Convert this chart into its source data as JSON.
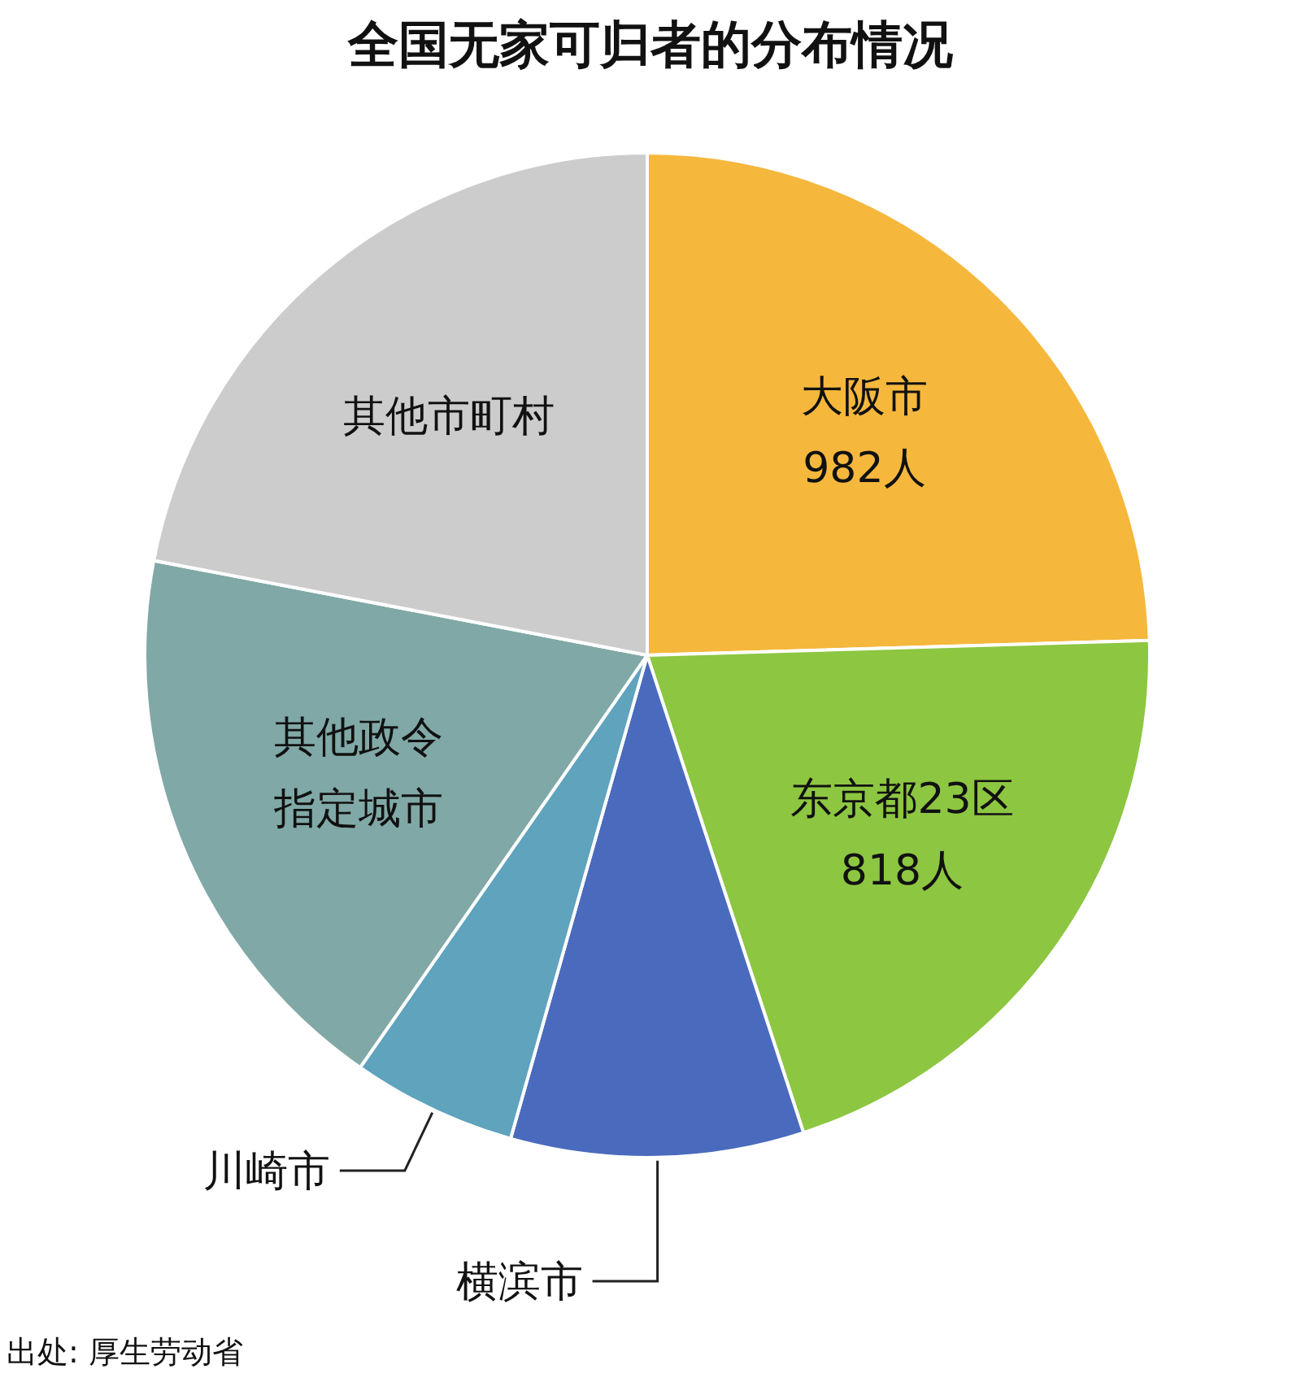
{
  "chart_data": {
    "type": "pie",
    "title": "全国无家可归者的分布情况",
    "categories": [
      "大阪市",
      "东京都23区",
      "横滨市",
      "川崎市",
      "其他政令指定城市",
      "其他市町村"
    ],
    "values": [
      982,
      818,
      377,
      212,
      734,
      880
    ],
    "value_labels": [
      "982人",
      "818人",
      null,
      null,
      null,
      null
    ],
    "colors": [
      "#f5b83d",
      "#8dc641",
      "#4a6bbd",
      "#5fa3bd",
      "#80a8a6",
      "#cccccc"
    ],
    "annotations": [
      "出处: 厚生劳动省"
    ]
  }
}
